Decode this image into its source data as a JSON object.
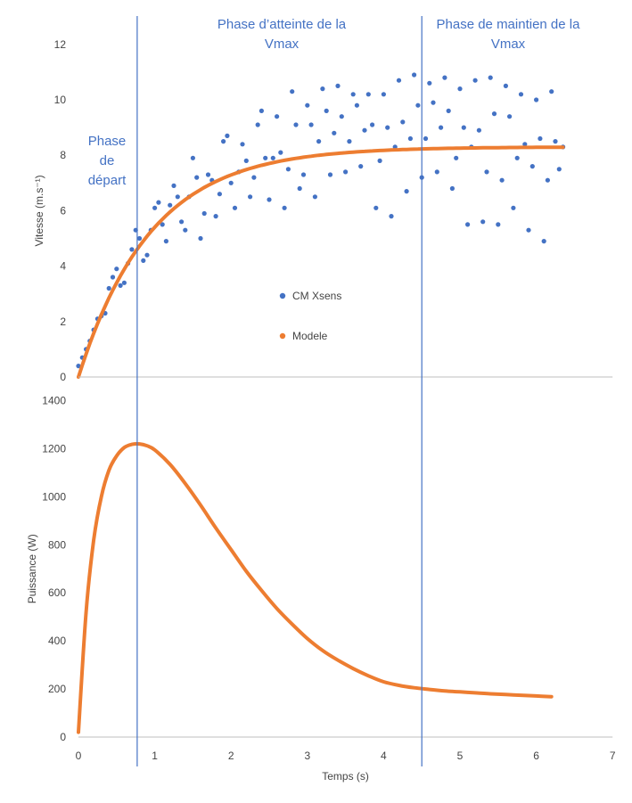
{
  "colors": {
    "measured": "#4472c4",
    "model": "#ed7d31",
    "phase_line": "#4472c4",
    "axis": "#bfbfbf",
    "text": "#444444"
  },
  "phases": {
    "boundaries_s": [
      0.77,
      4.5
    ],
    "labels": [
      {
        "lines": [
          "Phase",
          "de",
          "départ"
        ]
      },
      {
        "lines": [
          "Phase d’atteinte de la",
          "Vmax"
        ]
      },
      {
        "lines": [
          "Phase de maintien de la",
          "Vmax"
        ]
      }
    ]
  },
  "chart_data": [
    {
      "type": "scatter",
      "ylabel": "Vitesse (m.s⁻¹)",
      "xlim": [
        0,
        7
      ],
      "ylim": [
        0,
        12
      ],
      "xticks": [],
      "yticks": [
        0,
        2,
        4,
        6,
        8,
        10,
        12
      ],
      "grid": false,
      "legend": {
        "placement": "center",
        "entries": [
          "CM Xsens",
          "Modele"
        ]
      },
      "series": [
        {
          "name": "CM Xsens",
          "type": "scatter",
          "note_source": "measured speed, oscillating around model",
          "x": [
            0.0,
            0.05,
            0.1,
            0.15,
            0.2,
            0.25,
            0.3,
            0.35,
            0.4,
            0.45,
            0.5,
            0.55,
            0.6,
            0.65,
            0.7,
            0.75,
            0.8,
            0.85,
            0.9,
            0.95,
            1.0,
            1.05,
            1.1,
            1.15,
            1.2,
            1.25,
            1.3,
            1.35,
            1.4,
            1.45,
            1.5,
            1.55,
            1.6,
            1.65,
            1.7,
            1.75,
            1.8,
            1.85,
            1.9,
            1.95,
            2.0,
            2.05,
            2.1,
            2.15,
            2.2,
            2.25,
            2.3,
            2.35,
            2.4,
            2.45,
            2.5,
            2.55,
            2.6,
            2.65,
            2.7,
            2.75,
            2.8,
            2.85,
            2.9,
            2.95,
            3.0,
            3.05,
            3.1,
            3.15,
            3.2,
            3.25,
            3.3,
            3.35,
            3.4,
            3.45,
            3.5,
            3.55,
            3.6,
            3.65,
            3.7,
            3.75,
            3.8,
            3.85,
            3.9,
            3.95,
            4.0,
            4.05,
            4.1,
            4.15,
            4.2,
            4.25,
            4.3,
            4.35,
            4.4,
            4.45,
            4.5,
            4.55,
            4.6,
            4.65,
            4.7,
            4.75,
            4.8,
            4.85,
            4.9,
            4.95,
            5.0,
            5.05,
            5.1,
            5.15,
            5.2,
            5.25,
            5.3,
            5.35,
            5.4,
            5.45,
            5.5,
            5.55,
            5.6,
            5.65,
            5.7,
            5.75,
            5.8,
            5.85,
            5.9,
            5.95,
            6.0,
            6.05,
            6.1,
            6.15,
            6.2,
            6.25,
            6.3,
            6.35
          ],
          "y": [
            0.4,
            0.7,
            1.0,
            1.3,
            1.7,
            2.1,
            2.2,
            2.3,
            3.2,
            3.6,
            3.9,
            3.3,
            3.4,
            4.1,
            4.6,
            5.3,
            5.0,
            4.2,
            4.4,
            5.3,
            6.1,
            6.3,
            5.5,
            4.9,
            6.2,
            6.9,
            6.5,
            5.6,
            5.3,
            6.5,
            7.9,
            7.2,
            5.0,
            5.9,
            7.3,
            7.1,
            5.8,
            6.6,
            8.5,
            8.7,
            7.0,
            6.1,
            7.4,
            8.4,
            7.8,
            6.5,
            7.2,
            9.1,
            9.6,
            7.9,
            6.4,
            7.9,
            9.4,
            8.1,
            6.1,
            7.5,
            10.3,
            9.1,
            6.8,
            7.3,
            9.8,
            9.1,
            6.5,
            8.5,
            10.4,
            9.6,
            7.3,
            8.8,
            10.5,
            9.4,
            7.4,
            8.5,
            10.2,
            9.8,
            7.6,
            8.9,
            10.2,
            9.1,
            6.1,
            7.8,
            10.2,
            9.0,
            5.8,
            8.3,
            10.7,
            9.2,
            6.7,
            8.6,
            10.9,
            9.8,
            7.2,
            8.6,
            10.6,
            9.9,
            7.4,
            9.0,
            10.8,
            9.6,
            6.8,
            7.9,
            10.4,
            9.0,
            5.5,
            8.3,
            10.7,
            8.9,
            5.6,
            7.4,
            10.8,
            9.5,
            5.5,
            7.1,
            10.5,
            9.4,
            6.1,
            7.9,
            10.2,
            8.4,
            5.3,
            7.6,
            10.0,
            8.6,
            4.9,
            7.1,
            10.3,
            8.5,
            7.5,
            8.3
          ]
        },
        {
          "name": "Modele",
          "type": "line",
          "model": "v(t) = 8.3 * (1 - exp(-t / 0.95))",
          "vmax": 8.3,
          "tau": 0.95,
          "t_end": 6.35
        }
      ]
    },
    {
      "type": "line",
      "ylabel": "Puissance (W)",
      "xlabel": "Temps (s)",
      "xlim": [
        0,
        7
      ],
      "ylim": [
        0,
        1400
      ],
      "xticks": [
        0,
        1,
        2,
        3,
        4,
        5,
        6,
        7
      ],
      "yticks": [
        0,
        200,
        400,
        600,
        800,
        1000,
        1200,
        1400
      ],
      "grid": false,
      "series": [
        {
          "name": "Modele",
          "x": [
            0,
            0.1,
            0.2,
            0.3,
            0.4,
            0.5,
            0.6,
            0.7,
            0.8,
            0.9,
            1.0,
            1.2,
            1.4,
            1.6,
            1.8,
            2.0,
            2.2,
            2.4,
            2.6,
            2.8,
            3.0,
            3.2,
            3.4,
            3.6,
            3.8,
            4.0,
            4.2,
            4.4,
            4.6,
            4.8,
            5.0,
            5.2,
            5.4,
            5.6,
            5.8,
            6.0,
            6.2
          ],
          "y": [
            20,
            520,
            820,
            1000,
            1110,
            1170,
            1205,
            1218,
            1220,
            1212,
            1195,
            1135,
            1055,
            965,
            870,
            780,
            690,
            610,
            535,
            470,
            410,
            360,
            320,
            285,
            255,
            230,
            215,
            205,
            198,
            192,
            188,
            184,
            180,
            177,
            174,
            171,
            168
          ]
        }
      ]
    }
  ]
}
